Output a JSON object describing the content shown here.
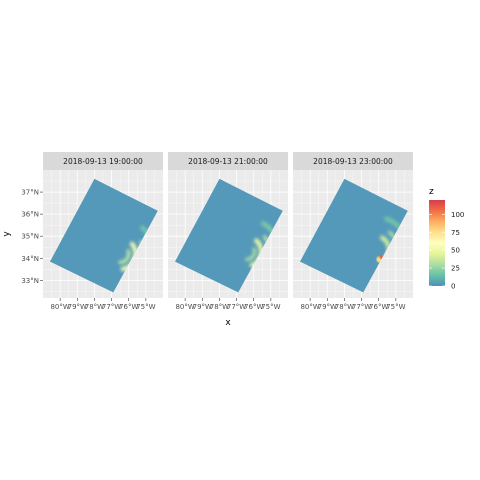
{
  "chart_data": {
    "type": "heatmap",
    "facet_variable": "time",
    "facets": [
      {
        "label": "2018-09-13 19:00:00",
        "bands": [
          {
            "lon": -76.5,
            "lat": 34.2,
            "r": 0.9,
            "a0": -80,
            "a1": 40,
            "z": 55,
            "w": 0.25
          },
          {
            "lon": -76.5,
            "lat": 34.2,
            "r": 1.4,
            "a0": -60,
            "a1": 30,
            "z": 30,
            "w": 0.2
          },
          {
            "lon": -76.5,
            "lat": 34.2,
            "r": 0.5,
            "a0": -90,
            "a1": 20,
            "z": 35,
            "w": 0.2
          },
          {
            "lon": -76.5,
            "lat": 34.2,
            "r": 2.0,
            "a0": -30,
            "a1": 50,
            "z": 18,
            "w": 0.25
          }
        ],
        "spots": []
      },
      {
        "label": "2018-09-13 21:00:00",
        "bands": [
          {
            "lon": -76.4,
            "lat": 34.3,
            "r": 0.85,
            "a0": -70,
            "a1": 50,
            "z": 50,
            "w": 0.25
          },
          {
            "lon": -76.4,
            "lat": 34.3,
            "r": 1.35,
            "a0": -50,
            "a1": 40,
            "z": 35,
            "w": 0.2
          },
          {
            "lon": -76.4,
            "lat": 34.3,
            "r": 0.45,
            "a0": -90,
            "a1": 20,
            "z": 30,
            "w": 0.2
          },
          {
            "lon": -76.4,
            "lat": 34.3,
            "r": 1.9,
            "a0": -20,
            "a1": 60,
            "z": 20,
            "w": 0.25
          }
        ],
        "spots": []
      },
      {
        "label": "2018-09-13 23:00:00",
        "bands": [
          {
            "lon": -76.2,
            "lat": 34.4,
            "r": 0.8,
            "a0": -60,
            "a1": 60,
            "z": 40,
            "w": 0.25
          },
          {
            "lon": -76.2,
            "lat": 34.4,
            "r": 1.3,
            "a0": -40,
            "a1": 50,
            "z": 30,
            "w": 0.2
          },
          {
            "lon": -76.2,
            "lat": 34.4,
            "r": 1.9,
            "a0": -10,
            "a1": 70,
            "z": 18,
            "w": 0.25
          }
        ],
        "spots": [
          {
            "lon": -75.85,
            "lat": 34.05,
            "z": 110,
            "r": 0.12
          },
          {
            "lon": -75.95,
            "lat": 33.95,
            "z": 75,
            "r": 0.18
          }
        ]
      }
    ],
    "domain_corners": [
      {
        "lon": -80.6,
        "lat": 33.85
      },
      {
        "lon": -78.0,
        "lat": 37.6
      },
      {
        "lon": -74.3,
        "lat": 36.15
      },
      {
        "lon": -76.9,
        "lat": 32.45
      }
    ],
    "background_z": 3,
    "x_axis": {
      "title": "x",
      "range": [
        -81.0,
        -74.0
      ],
      "ticks": [
        -80,
        -79,
        -78,
        -77,
        -76,
        -75
      ],
      "tick_labels": [
        "80°W",
        "79°W",
        "78°W",
        "77°W",
        "76°W",
        "75°W"
      ]
    },
    "y_axis": {
      "title": "y",
      "range": [
        32.2,
        38.0
      ],
      "ticks": [
        33,
        34,
        35,
        36,
        37
      ],
      "tick_labels": [
        "33°N",
        "34°N",
        "35°N",
        "36°N",
        "37°N"
      ]
    },
    "legend": {
      "title": "z",
      "placement": "right",
      "range": [
        0,
        120
      ],
      "breaks": [
        0,
        25,
        50,
        75,
        100
      ],
      "labels": [
        "0",
        "25",
        "50",
        "75",
        "100"
      ],
      "palette": [
        "#5E4FA2",
        "#3288BD",
        "#66C2A5",
        "#ABDDA4",
        "#E6F598",
        "#FFFFBF",
        "#FEE08B",
        "#FDAE61",
        "#F46D43",
        "#D53E4F",
        "#9E0142"
      ],
      "palette_used": [
        "#4f8fbf",
        "#66C2A5",
        "#ABDDA4",
        "#E6F598",
        "#FFFFBF",
        "#FEE08B",
        "#FDAE61",
        "#F46D43",
        "#D53E4F"
      ]
    },
    "grid": true,
    "panel_background": "#EBEBEB",
    "strip_background": "#D9D9D9"
  }
}
